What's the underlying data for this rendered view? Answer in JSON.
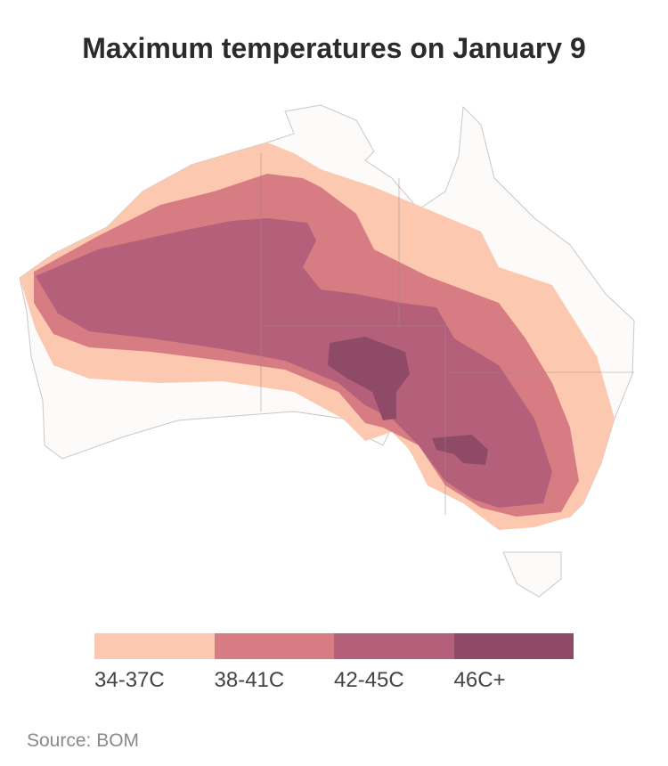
{
  "header": {
    "title": "Maximum temperatures on January 9"
  },
  "legend": {
    "items": [
      {
        "label": "34-37C",
        "color": "#fcc8b0"
      },
      {
        "label": "38-41C",
        "color": "#d77c82"
      },
      {
        "label": "42-45C",
        "color": "#b4607a"
      },
      {
        "label": "46C+",
        "color": "#8f4a68"
      }
    ]
  },
  "footer": {
    "source": "Source: BOM"
  }
}
